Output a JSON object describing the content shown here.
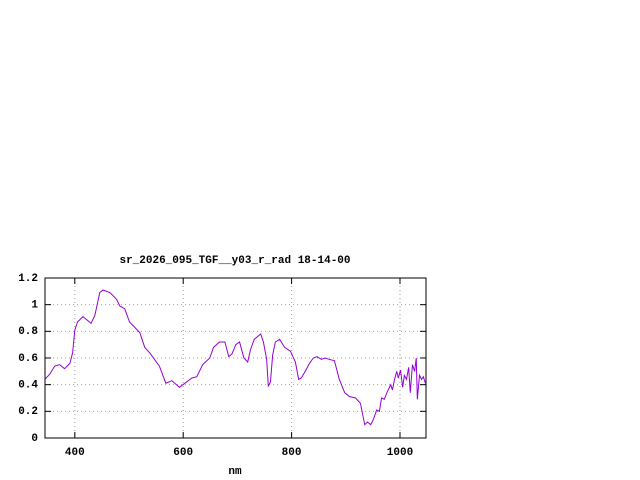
{
  "chart_data": {
    "type": "line",
    "title": "sr_2026_095_TGF__y03_r_rad 18-14-00",
    "x_label": "nm",
    "x": [
      345,
      354,
      363,
      372,
      381,
      391,
      396,
      400,
      405,
      415,
      424,
      430,
      437,
      446,
      452,
      465,
      477,
      483,
      492,
      501,
      520,
      529,
      538,
      556,
      568,
      579,
      593,
      603,
      616,
      625,
      636,
      649,
      656,
      667,
      677,
      684,
      690,
      697,
      704,
      712,
      719,
      724,
      731,
      743,
      748,
      754,
      757,
      761,
      765,
      770,
      778,
      787,
      798,
      807,
      813,
      818,
      825,
      833,
      840,
      847,
      855,
      862,
      869,
      879,
      888,
      898,
      907,
      918,
      927,
      935,
      940,
      946,
      951,
      957,
      962,
      966,
      971,
      977,
      983,
      986,
      990,
      994,
      997,
      1001,
      1005,
      1008,
      1012,
      1016,
      1019,
      1023,
      1027,
      1030,
      1032,
      1036,
      1040,
      1043,
      1047
    ],
    "values": [
      0.44,
      0.48,
      0.54,
      0.55,
      0.52,
      0.56,
      0.64,
      0.81,
      0.87,
      0.91,
      0.88,
      0.86,
      0.92,
      1.09,
      1.11,
      1.09,
      1.04,
      0.99,
      0.97,
      0.87,
      0.79,
      0.68,
      0.64,
      0.54,
      0.41,
      0.43,
      0.38,
      0.41,
      0.45,
      0.46,
      0.55,
      0.6,
      0.68,
      0.72,
      0.72,
      0.61,
      0.63,
      0.7,
      0.72,
      0.6,
      0.57,
      0.66,
      0.74,
      0.78,
      0.72,
      0.59,
      0.39,
      0.42,
      0.62,
      0.72,
      0.74,
      0.68,
      0.65,
      0.57,
      0.44,
      0.45,
      0.5,
      0.56,
      0.6,
      0.61,
      0.59,
      0.6,
      0.59,
      0.58,
      0.44,
      0.34,
      0.31,
      0.3,
      0.26,
      0.1,
      0.12,
      0.1,
      0.14,
      0.21,
      0.2,
      0.3,
      0.29,
      0.35,
      0.4,
      0.36,
      0.44,
      0.5,
      0.45,
      0.51,
      0.38,
      0.47,
      0.44,
      0.53,
      0.34,
      0.55,
      0.5,
      0.6,
      0.29,
      0.47,
      0.44,
      0.46,
      0.41
    ],
    "color": "#9400d3",
    "xlim": [
      345,
      1048
    ],
    "ylim": [
      0,
      1.2
    ],
    "xticks": [
      400,
      600,
      800,
      1000
    ],
    "yticks": [
      0,
      0.2,
      0.4,
      0.6,
      0.8,
      1,
      1.2
    ],
    "grid": true
  }
}
